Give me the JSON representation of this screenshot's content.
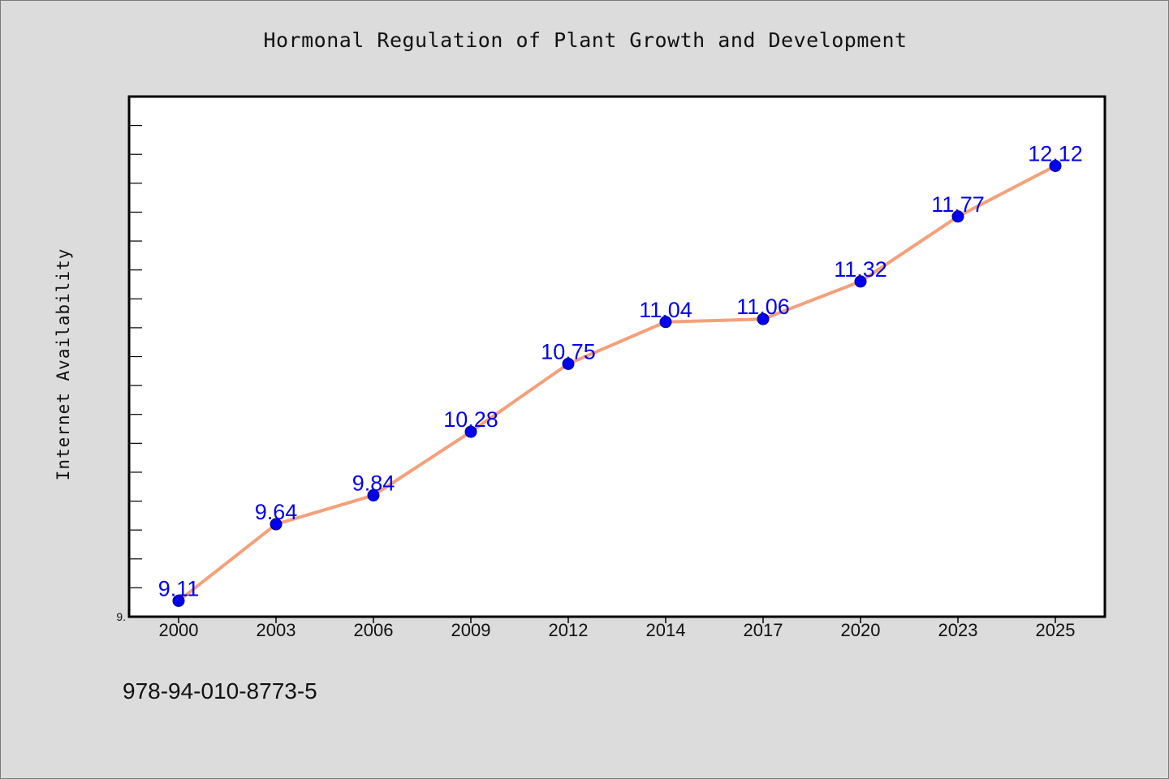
{
  "chart_data": {
    "type": "line",
    "title": "Hormonal Regulation of Plant Growth and Development",
    "xlabel": "",
    "ylabel": "Internet Availability",
    "categories": [
      "2000",
      "2003",
      "2006",
      "2009",
      "2012",
      "2014",
      "2017",
      "2020",
      "2023",
      "2025"
    ],
    "series": [
      {
        "values": [
          9.11,
          9.64,
          9.84,
          10.28,
          10.75,
          11.04,
          11.06,
          11.32,
          11.77,
          12.12
        ],
        "data_labels": [
          "9.11",
          "9.64",
          "9.84",
          "10.28",
          "10.75",
          "11.04",
          "11.06",
          "11.32",
          "11.77",
          "12.12"
        ]
      }
    ],
    "ylim": [
      9.0,
      12.6
    ],
    "y_tick_labels": [
      "9."
    ],
    "grid": false,
    "line_color": "#f4a07a",
    "marker_color": "#0000ee",
    "label_color": "#0000ee"
  },
  "footer": {
    "isbn": "978-94-010-8773-5"
  },
  "colors": {
    "background": "#dcdcdc",
    "plot_background": "#ffffff",
    "axis": "#000000"
  }
}
